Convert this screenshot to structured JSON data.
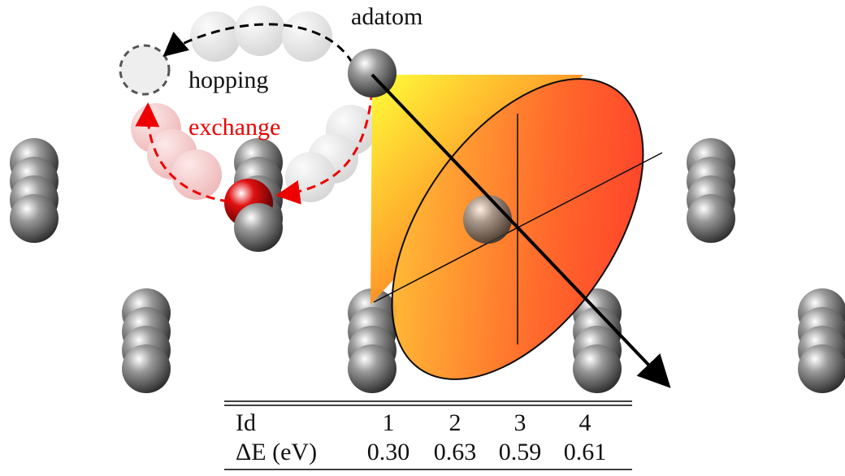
{
  "labels": {
    "adatom": "adatom",
    "hopping": "hopping",
    "exchange": "exchange"
  },
  "table": {
    "header": [
      "Id",
      "1",
      "2",
      "3",
      "4"
    ],
    "rows": [
      [
        "ΔE (eV)",
        "0.30",
        "0.63",
        "0.59",
        "0.61"
      ]
    ]
  }
}
